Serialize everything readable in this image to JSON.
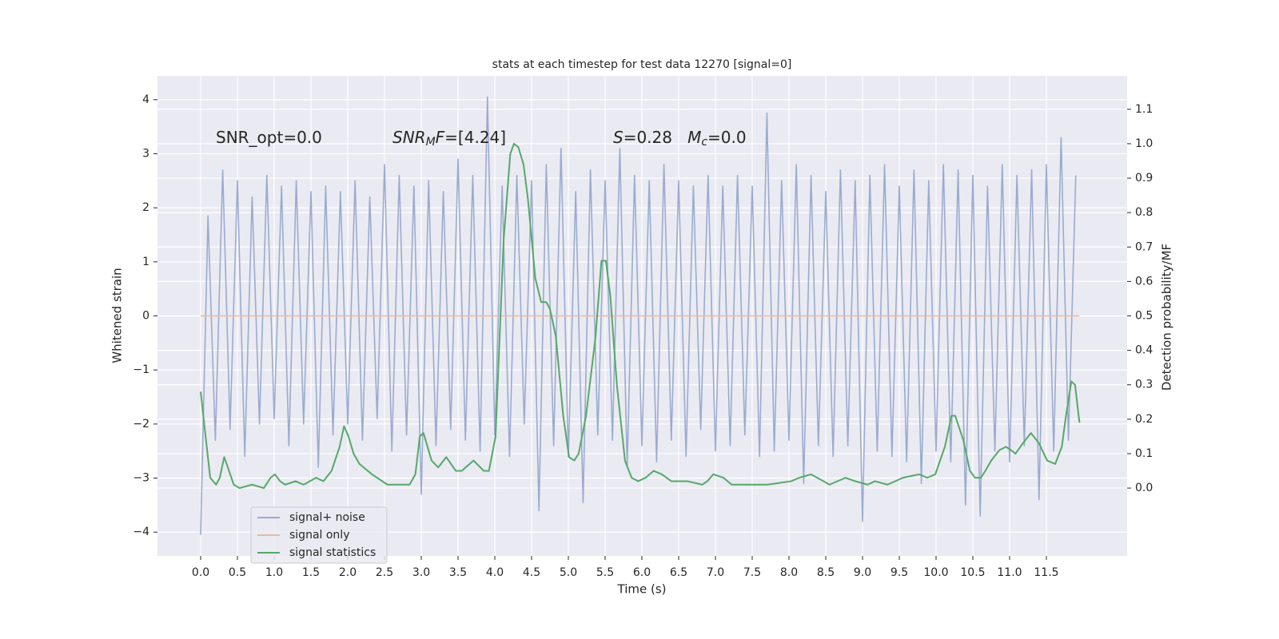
{
  "chart_data": {
    "type": "line",
    "title": "stats at each timestep for test data 12270 [signal=0]",
    "xlabel": "Time (s)",
    "ylabel": "Whitened strain",
    "y2label": "Detection probability/MF",
    "xlim": [
      -0.587,
      12.598
    ],
    "ylim": [
      -4.44,
      4.44
    ],
    "y2lim": [
      -0.197,
      1.197
    ],
    "grid": true,
    "legend": "lower left",
    "xticks": [
      {
        "value": 0,
        "label": "0.0"
      },
      {
        "value": 0.5,
        "label": "0.5"
      },
      {
        "value": 1,
        "label": "1.0"
      },
      {
        "value": 1.5,
        "label": "1.5"
      },
      {
        "value": 2,
        "label": "2.0"
      },
      {
        "value": 2.5,
        "label": "2.5"
      },
      {
        "value": 3,
        "label": "3.0"
      },
      {
        "value": 3.5,
        "label": "3.5"
      },
      {
        "value": 4,
        "label": "4.0"
      },
      {
        "value": 4.5,
        "label": "4.5"
      },
      {
        "value": 5,
        "label": "5.0"
      },
      {
        "value": 5.5,
        "label": "5.5"
      },
      {
        "value": 6,
        "label": "6.0"
      },
      {
        "value": 6.5,
        "label": "6.5"
      },
      {
        "value": 7,
        "label": "7.0"
      },
      {
        "value": 7.5,
        "label": "7.5"
      },
      {
        "value": 8,
        "label": "8.0"
      },
      {
        "value": 8.5,
        "label": "8.5"
      },
      {
        "value": 9,
        "label": "9.0"
      },
      {
        "value": 9.5,
        "label": "9.5"
      },
      {
        "value": 10,
        "label": "10.0"
      },
      {
        "value": 10.5,
        "label": "10.5"
      },
      {
        "value": 11,
        "label": "11.0"
      },
      {
        "value": 11.5,
        "label": "11.5"
      }
    ],
    "yticks": [
      {
        "value": -4,
        "label": "−4"
      },
      {
        "value": -3,
        "label": "−3"
      },
      {
        "value": -2,
        "label": "−2"
      },
      {
        "value": -1,
        "label": "−1"
      },
      0,
      1,
      2,
      3,
      4
    ],
    "y2ticks": [
      {
        "value": 0,
        "label": "0.0"
      },
      {
        "value": 0.1,
        "label": "0.1"
      },
      {
        "value": 0.2,
        "label": "0.2"
      },
      {
        "value": 0.3,
        "label": "0.3"
      },
      {
        "value": 0.4,
        "label": "0.4"
      },
      {
        "value": 0.5,
        "label": "0.5"
      },
      {
        "value": 0.6,
        "label": "0.6"
      },
      {
        "value": 0.7,
        "label": "0.7"
      },
      {
        "value": 0.8,
        "label": "0.8"
      },
      {
        "value": 0.9,
        "label": "0.9"
      },
      {
        "value": 1,
        "label": "1.0"
      },
      {
        "value": 1.1,
        "label": "1.1"
      }
    ],
    "annotations": [
      {
        "parts": [
          {
            "text": "SNR_opt=0.0"
          }
        ]
      },
      {
        "parts": [
          {
            "text": "SNR",
            "style": "italic"
          },
          {
            "text": "M",
            "style": "sub"
          },
          {
            "text": "F",
            "style": "italic"
          },
          {
            "text": "=[4.24]"
          }
        ]
      },
      {
        "parts": [
          {
            "text": "S",
            "style": "italic"
          },
          {
            "text": "=0.28   "
          },
          {
            "text": "M",
            "style": "italic"
          },
          {
            "text": "c",
            "style": "sub"
          },
          {
            "text": "=0.0"
          }
        ]
      }
    ],
    "series": [
      {
        "name": "signal+ noise",
        "color": "#9aabd0",
        "x": [
          0,
          0.1,
          0.2,
          0.3,
          0.4,
          0.5,
          0.6,
          0.7,
          0.8,
          0.9,
          1,
          1.1,
          1.2,
          1.3,
          1.4,
          1.5,
          1.6,
          1.7,
          1.8,
          1.9,
          2,
          2.1,
          2.2,
          2.3,
          2.4,
          2.5,
          2.6,
          2.7,
          2.8,
          2.9,
          3,
          3.1,
          3.2,
          3.3,
          3.4,
          3.5,
          3.6,
          3.7,
          3.8,
          3.9,
          4,
          4.1,
          4.2,
          4.3,
          4.4,
          4.5,
          4.6,
          4.7,
          4.8,
          4.9,
          5,
          5.1,
          5.2,
          5.3,
          5.4,
          5.5,
          5.6,
          5.7,
          5.8,
          5.9,
          6,
          6.1,
          6.2,
          6.3,
          6.4,
          6.5,
          6.6,
          6.7,
          6.8,
          6.9,
          7,
          7.1,
          7.2,
          7.3,
          7.4,
          7.5,
          7.6,
          7.7,
          7.8,
          7.9,
          8,
          8.1,
          8.2,
          8.3,
          8.4,
          8.5,
          8.6,
          8.7,
          8.8,
          8.9,
          9,
          9.1,
          9.2,
          9.3,
          9.4,
          9.5,
          9.6,
          9.7,
          9.8,
          9.9,
          10,
          10.1,
          10.2,
          10.3,
          10.4,
          10.5,
          10.6,
          10.7,
          10.8,
          10.9,
          11,
          11.1,
          11.2,
          11.3,
          11.4,
          11.5,
          11.6,
          11.7,
          11.8,
          11.9
        ],
        "values": [
          -4.05,
          1.85,
          -2.3,
          2.7,
          -2.1,
          2.5,
          -2.6,
          2.2,
          -2.0,
          2.6,
          -1.9,
          2.4,
          -2.4,
          2.5,
          -2.0,
          2.3,
          -2.8,
          2.4,
          -2.2,
          2.3,
          -2.0,
          2.5,
          -2.3,
          2.2,
          -1.9,
          2.8,
          -2.5,
          2.6,
          -2.2,
          2.4,
          -3.3,
          2.5,
          -2.4,
          2.3,
          -2.1,
          2.9,
          -2.3,
          2.6,
          -2.5,
          4.05,
          -2.2,
          2.4,
          -2.6,
          2.6,
          -2.0,
          2.5,
          -3.6,
          2.8,
          -2.4,
          3.1,
          -2.6,
          2.3,
          -3.45,
          2.7,
          -2.2,
          2.5,
          -2.3,
          3.1,
          -2.8,
          2.6,
          -2.4,
          2.5,
          -2.7,
          2.8,
          -2.3,
          2.5,
          -2.6,
          2.4,
          -2.1,
          2.6,
          -2.5,
          2.4,
          -2.4,
          2.6,
          -2.2,
          2.4,
          -2.6,
          3.75,
          -2.5,
          2.5,
          -2.3,
          2.8,
          -3.1,
          2.6,
          -2.4,
          2.3,
          -2.6,
          2.7,
          -2.4,
          2.5,
          -3.8,
          2.6,
          -2.5,
          2.8,
          -2.6,
          2.4,
          -2.7,
          2.7,
          -3.1,
          2.5,
          -2.5,
          2.8,
          -2.7,
          2.7,
          -3.5,
          2.6,
          -3.7,
          2.4,
          -2.5,
          2.8,
          -2.7,
          2.6,
          -2.4,
          2.7,
          -3.4,
          2.8,
          -2.5,
          3.3,
          -2.3,
          2.6
        ]
      },
      {
        "name": "signal only",
        "color": "#e8b9a0",
        "x": [
          0,
          11.95
        ],
        "values": [
          0,
          0
        ]
      },
      {
        "name": "signal statistics",
        "color": "#55a868",
        "axis": "y2",
        "x": [
          0,
          0.13,
          0.21,
          0.26,
          0.32,
          0.37,
          0.45,
          0.53,
          0.7,
          0.86,
          0.95,
          1.01,
          1.08,
          1.15,
          1.29,
          1.4,
          1.57,
          1.67,
          1.78,
          1.89,
          1.95,
          2.01,
          2.08,
          2.16,
          2.33,
          2.54,
          2.74,
          2.84,
          2.92,
          2.98,
          3.03,
          3.14,
          3.23,
          3.34,
          3.47,
          3.55,
          3.71,
          3.85,
          3.92,
          4.01,
          4.12,
          4.21,
          4.26,
          4.32,
          4.39,
          4.45,
          4.55,
          4.63,
          4.7,
          4.75,
          4.83,
          4.93,
          5.01,
          5.08,
          5.14,
          5.24,
          5.37,
          5.45,
          5.51,
          5.57,
          5.66,
          5.77,
          5.86,
          5.95,
          6.05,
          6.16,
          6.27,
          6.4,
          6.62,
          6.82,
          6.89,
          6.97,
          7.11,
          7.22,
          7.49,
          7.71,
          8.03,
          8.14,
          8.3,
          8.47,
          8.55,
          8.77,
          8.9,
          9.07,
          9.17,
          9.34,
          9.55,
          9.77,
          9.88,
          9.99,
          10.12,
          10.21,
          10.26,
          10.37,
          10.46,
          10.53,
          10.61,
          10.67,
          10.75,
          10.86,
          10.95,
          11.02,
          11.08,
          11.18,
          11.29,
          11.4,
          11.51,
          11.62,
          11.71,
          11.76,
          11.84,
          11.89,
          11.95
        ],
        "values": [
          0.28,
          0.03,
          0.01,
          0.03,
          0.09,
          0.06,
          0.01,
          0.0,
          0.01,
          0.0,
          0.03,
          0.04,
          0.02,
          0.01,
          0.02,
          0.01,
          0.03,
          0.02,
          0.05,
          0.12,
          0.18,
          0.15,
          0.1,
          0.07,
          0.04,
          0.01,
          0.01,
          0.01,
          0.04,
          0.15,
          0.16,
          0.08,
          0.06,
          0.09,
          0.05,
          0.05,
          0.08,
          0.05,
          0.05,
          0.15,
          0.72,
          0.97,
          1.0,
          0.99,
          0.94,
          0.84,
          0.61,
          0.54,
          0.54,
          0.52,
          0.44,
          0.21,
          0.09,
          0.08,
          0.1,
          0.21,
          0.44,
          0.66,
          0.66,
          0.56,
          0.3,
          0.08,
          0.03,
          0.02,
          0.03,
          0.05,
          0.04,
          0.02,
          0.02,
          0.01,
          0.02,
          0.04,
          0.03,
          0.01,
          0.01,
          0.01,
          0.02,
          0.03,
          0.04,
          0.02,
          0.01,
          0.03,
          0.02,
          0.01,
          0.02,
          0.01,
          0.03,
          0.04,
          0.03,
          0.04,
          0.12,
          0.21,
          0.21,
          0.14,
          0.05,
          0.03,
          0.03,
          0.05,
          0.08,
          0.11,
          0.12,
          0.11,
          0.1,
          0.13,
          0.16,
          0.13,
          0.08,
          0.07,
          0.12,
          0.2,
          0.31,
          0.3,
          0.19
        ]
      }
    ]
  }
}
